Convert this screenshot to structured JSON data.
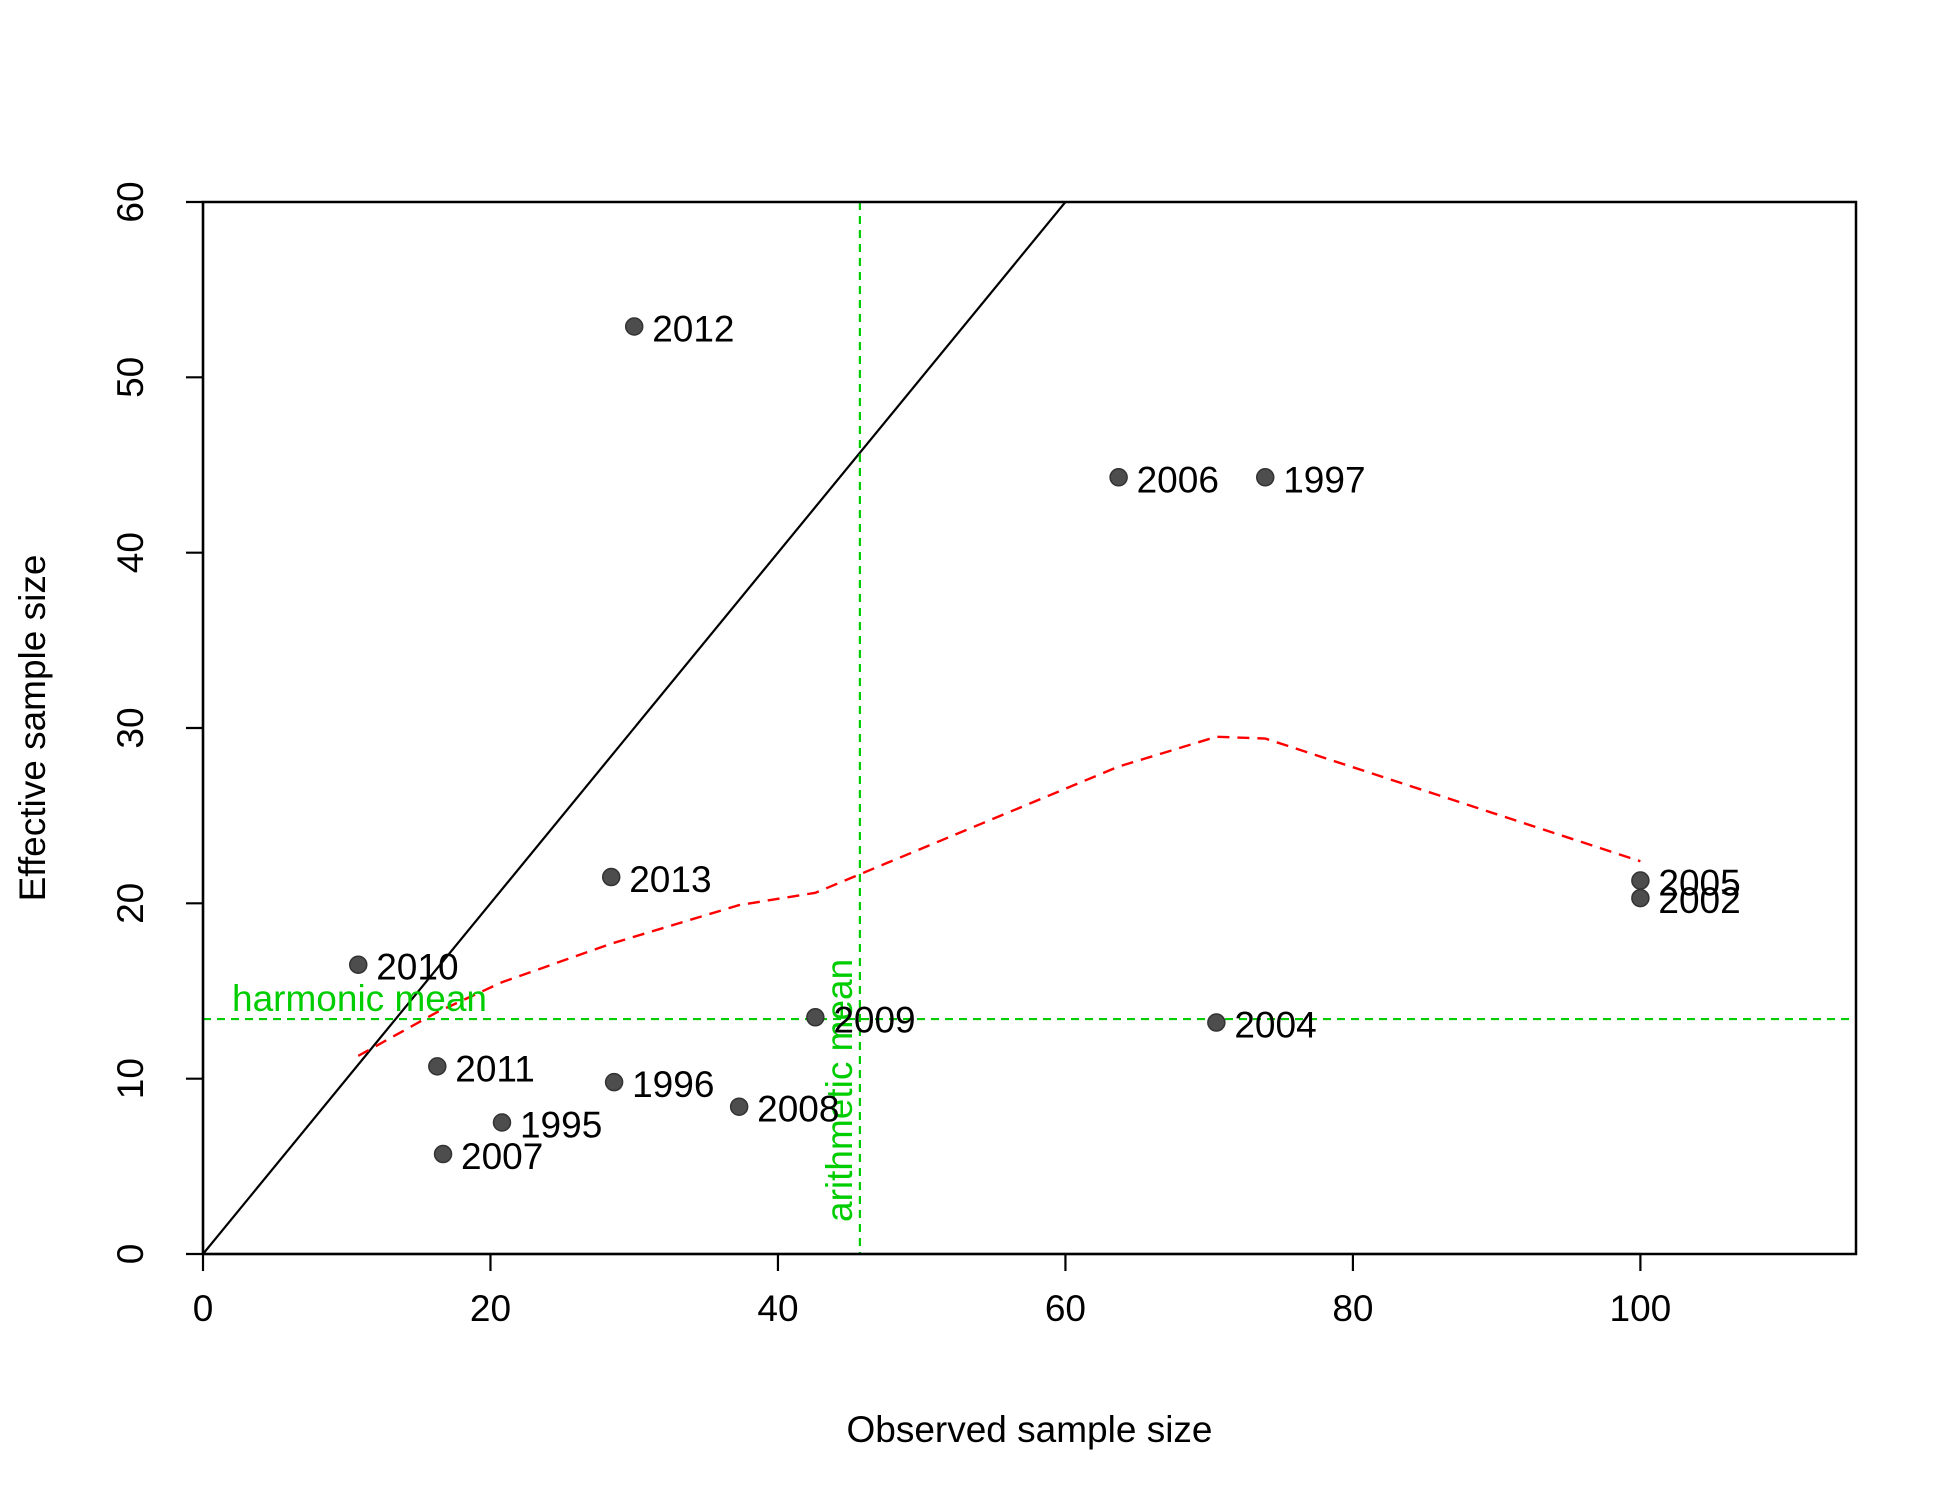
{
  "chart_data": {
    "type": "scatter",
    "title": "",
    "xlabel": "Observed sample size",
    "ylabel": "Effective sample size",
    "xlim": [
      0,
      115
    ],
    "ylim": [
      0,
      60
    ],
    "x_ticks": [
      0,
      20,
      40,
      60,
      80,
      100
    ],
    "y_ticks": [
      0,
      10,
      20,
      30,
      40,
      50,
      60
    ],
    "grid": false,
    "colors": {
      "points": "#4d4d4d",
      "identity_line": "#000000",
      "smoother": "#ff0000",
      "reference_lines": "#00cd00"
    },
    "points": [
      {
        "label": "2012",
        "x": 30.0,
        "y": 52.9
      },
      {
        "label": "2006",
        "x": 63.7,
        "y": 44.3
      },
      {
        "label": "1997",
        "x": 73.9,
        "y": 44.3
      },
      {
        "label": "2013",
        "x": 28.4,
        "y": 21.5
      },
      {
        "label": "2005",
        "x": 100.0,
        "y": 21.3
      },
      {
        "label": "2002",
        "x": 100.0,
        "y": 20.3
      },
      {
        "label": "2010",
        "x": 10.8,
        "y": 16.5
      },
      {
        "label": "2009",
        "x": 42.6,
        "y": 13.5
      },
      {
        "label": "2004",
        "x": 70.5,
        "y": 13.2
      },
      {
        "label": "2011",
        "x": 16.3,
        "y": 10.7
      },
      {
        "label": "1996",
        "x": 28.6,
        "y": 9.8
      },
      {
        "label": "2008",
        "x": 37.3,
        "y": 8.4
      },
      {
        "label": "1995",
        "x": 20.8,
        "y": 7.5
      },
      {
        "label": "2007",
        "x": 16.7,
        "y": 5.7
      }
    ],
    "identity_line": {
      "slope": 1,
      "intercept": 0
    },
    "smoother": {
      "style": "dashed",
      "x": [
        10.8,
        16.3,
        20.8,
        28.4,
        37.3,
        42.6,
        63.7,
        70.5,
        73.9,
        100.0
      ],
      "y": [
        11.3,
        13.8,
        15.5,
        17.7,
        19.9,
        20.6,
        27.8,
        29.5,
        29.4,
        22.4
      ]
    },
    "reference_lines": [
      {
        "orientation": "horizontal",
        "value": 13.4,
        "label": "harmonic mean"
      },
      {
        "orientation": "vertical",
        "value": 45.7,
        "label": "arithmetic mean"
      }
    ]
  }
}
